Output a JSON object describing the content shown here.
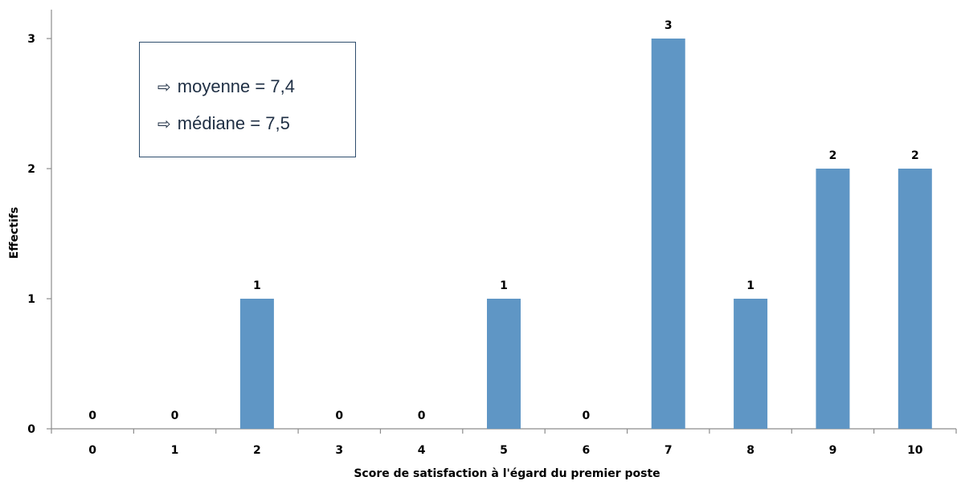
{
  "chart_data": {
    "type": "bar",
    "categories": [
      "0",
      "1",
      "2",
      "3",
      "4",
      "5",
      "6",
      "7",
      "8",
      "9",
      "10"
    ],
    "values": [
      0,
      0,
      1,
      0,
      0,
      1,
      0,
      3,
      1,
      2,
      2
    ],
    "title": "",
    "xlabel": "Score de satisfaction à l'égard du premier poste",
    "ylabel": "Effectifs",
    "ylim": [
      0,
      3
    ],
    "yticks": [
      "0",
      "1",
      "2",
      "3"
    ],
    "bar_color": "#5f96c5",
    "grid": false,
    "legend": "none",
    "data_labels": true
  },
  "annotation": {
    "arrow_icon": "arrow-right-icon",
    "lines": [
      "moyenne = 7,4",
      "médiane = 7,5"
    ],
    "border_color": "#2f4e6e"
  }
}
